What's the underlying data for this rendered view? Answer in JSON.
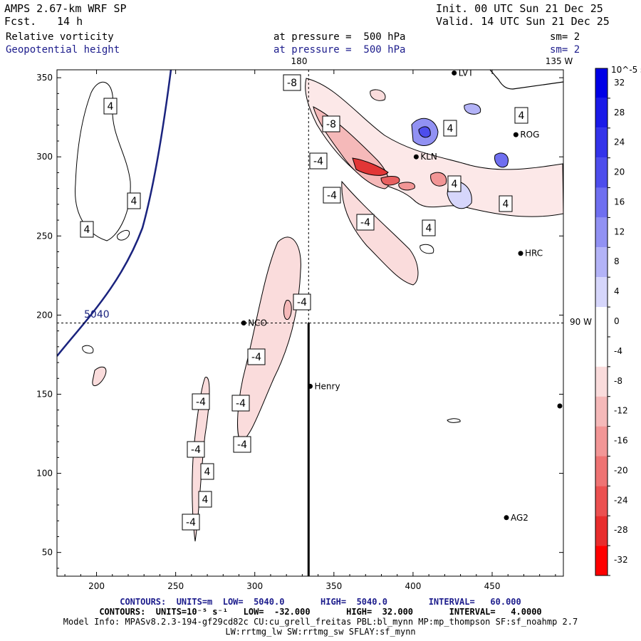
{
  "header": {
    "model": "AMPS 2.67-km WRF SP",
    "fcst_label": "Fcst.",
    "fcst_value": "14 h",
    "init": "Init. 00 UTC Sun 21 Dec 25",
    "valid": "Valid. 14 UTC Sun 21 Dec 25",
    "field1": "Relative vorticity",
    "field1_level": "at pressure =  500 hPa",
    "field1_sm": "sm= 2",
    "field2": "Geopotential height",
    "field2_level": "at pressure =  500 hPa",
    "field2_sm": "sm= 2"
  },
  "map": {
    "meridian_label": "180",
    "meridian2_label": "135 W",
    "parallel_label": "90 W",
    "geopotential_label": "5040",
    "stations": [
      "NCO",
      "Henry",
      "HRC",
      "AG2",
      "KLN",
      "ROG",
      "LVT"
    ],
    "contour_labels": [
      "-8",
      "-8",
      "-4",
      "-4",
      "-4",
      "-4",
      "-4",
      "-4",
      "-4",
      "-4",
      "-4",
      "-4",
      "4",
      "4",
      "4",
      "4",
      "4",
      "4",
      "4",
      "4",
      "4",
      "4"
    ]
  },
  "chart_data": {
    "type": "contour",
    "xlim": [
      175,
      495
    ],
    "ylim": [
      35,
      355
    ],
    "x_ticks": [
      200,
      250,
      300,
      350,
      400,
      450
    ],
    "y_ticks": [
      50,
      100,
      150,
      200,
      250,
      300,
      350
    ],
    "colorbar": {
      "units": "10^-5 s^-1",
      "ticks": [
        32,
        28,
        24,
        20,
        16,
        12,
        8,
        4,
        0,
        -4,
        -8,
        -12,
        -16,
        -20,
        -24,
        -28,
        -32
      ],
      "colors": [
        "#0000e6",
        "#1a1ae8",
        "#3333ea",
        "#4d4dec",
        "#6f6ff0",
        "#9191f3",
        "#b3b3f7",
        "#d6d6fb",
        "#ffffff",
        "#ffffff",
        "#fadcdc",
        "#f5b9b9",
        "#f29696",
        "#ee7373",
        "#eb5050",
        "#e82d2d",
        "#ff0000"
      ]
    },
    "geopotential_contours": [
      5040
    ],
    "vorticity_contour_interval": 4,
    "stations": [
      {
        "name": "NCO",
        "x": 293,
        "y": 195
      },
      {
        "name": "Henry",
        "x": 335,
        "y": 155
      },
      {
        "name": "HRC",
        "x": 468,
        "y": 239
      },
      {
        "name": "AG2",
        "x": 459,
        "y": 72
      },
      {
        "name": "KLN",
        "x": 402,
        "y": 300
      },
      {
        "name": "ROG",
        "x": 465,
        "y": 314
      },
      {
        "name": "LVT",
        "x": 426,
        "y": 353
      }
    ],
    "parallel_y": 195,
    "meridian_x": 334
  },
  "footer": {
    "line1": "CONTOURS:  UNITS=m  LOW=  5040.0       HIGH=  5040.0        INTERVAL=   60.000",
    "line2": "CONTOURS:  UNITS=10⁻⁵ s⁻¹   LOW=  -32.000       HIGH=  32.000       INTERVAL=   4.0000",
    "line3": "Model Info: MPASv8.2.3-194-gf29cd82c CU:cu_grell_freitas PBL:bl_mynn MP:mp_thompson SF:sf_noahmp 2.7",
    "line4": "LW:rrtmg_lw SW:rrtmg_sw SFLAY:sf_mynn"
  }
}
